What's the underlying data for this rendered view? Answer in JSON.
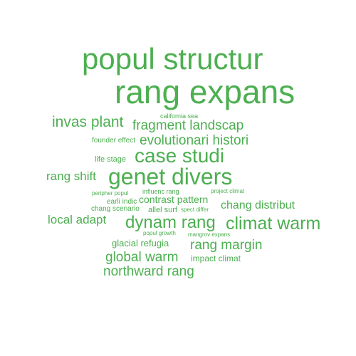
{
  "colors": {
    "background": "#ffffff",
    "word": "#4caf50"
  },
  "words": {
    "rang_expans": "rang expans",
    "popul_structur": "popul structur",
    "genet_divers": "genet divers",
    "case_studi": "case studi",
    "climat_warm": "climat warm",
    "dynam_rang": "dynam rang",
    "invas_plant": "invas plant",
    "fragment_landscap": "fragment landscap",
    "evolutionari_histori": "evolutionari histori",
    "rang_margin": "rang margin",
    "global_warm": "global warm",
    "northward_rang": "northward rang",
    "local_adapt": "local adapt",
    "rang_shift": "rang shift",
    "chang_distribut": "chang distribut",
    "contrast_pattern": "contrast pattern",
    "glacial_refugia": "glacial refugia",
    "impact_climat": "impact climat",
    "life_stage": "life stage",
    "allel_surf": "allel surf",
    "earli_indic": "earli indic",
    "founder_effect": "founder effect",
    "chang_scenario": "chang scenario",
    "california_sea": "california sea",
    "influenc_rang": "influenc rang",
    "peripher_popul": "peripher popul",
    "project_climat": "project climat",
    "spect_differ": "spect differ",
    "popul_growth": "popul growth",
    "mangrov_expans": "mangrov expans"
  }
}
